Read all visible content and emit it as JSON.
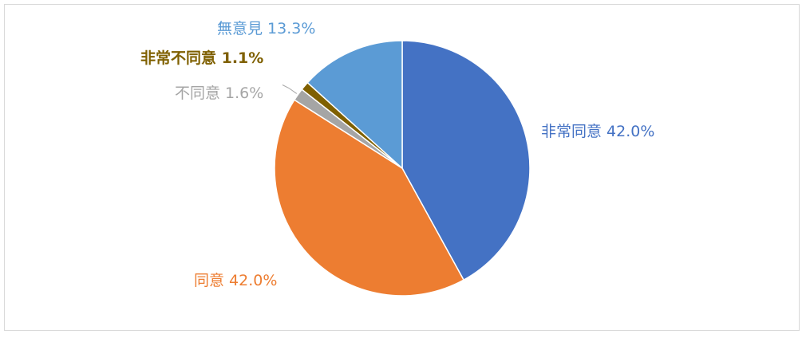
{
  "chart_data": {
    "type": "pie",
    "title": "",
    "legend": "none",
    "slices": [
      {
        "label": "非常同意",
        "value": 42.0,
        "display": "42.0%",
        "color": "#4472C4",
        "label_bold": false,
        "leader_line": false
      },
      {
        "label": "同意",
        "value": 42.0,
        "display": "42.0%",
        "color": "#ED7D31",
        "label_bold": false,
        "leader_line": false
      },
      {
        "label": "不同意",
        "value": 1.6,
        "display": "1.6%",
        "color": "#A5A5A5",
        "label_bold": false,
        "leader_line": true
      },
      {
        "label": "非常不同意",
        "value": 1.1,
        "display": "1.1%",
        "color": "#7F6000",
        "label_bold": true,
        "leader_line": false
      },
      {
        "label": "無意見",
        "value": 13.3,
        "display": "13.3%",
        "color": "#5B9BD5",
        "label_bold": false,
        "leader_line": false
      }
    ]
  }
}
